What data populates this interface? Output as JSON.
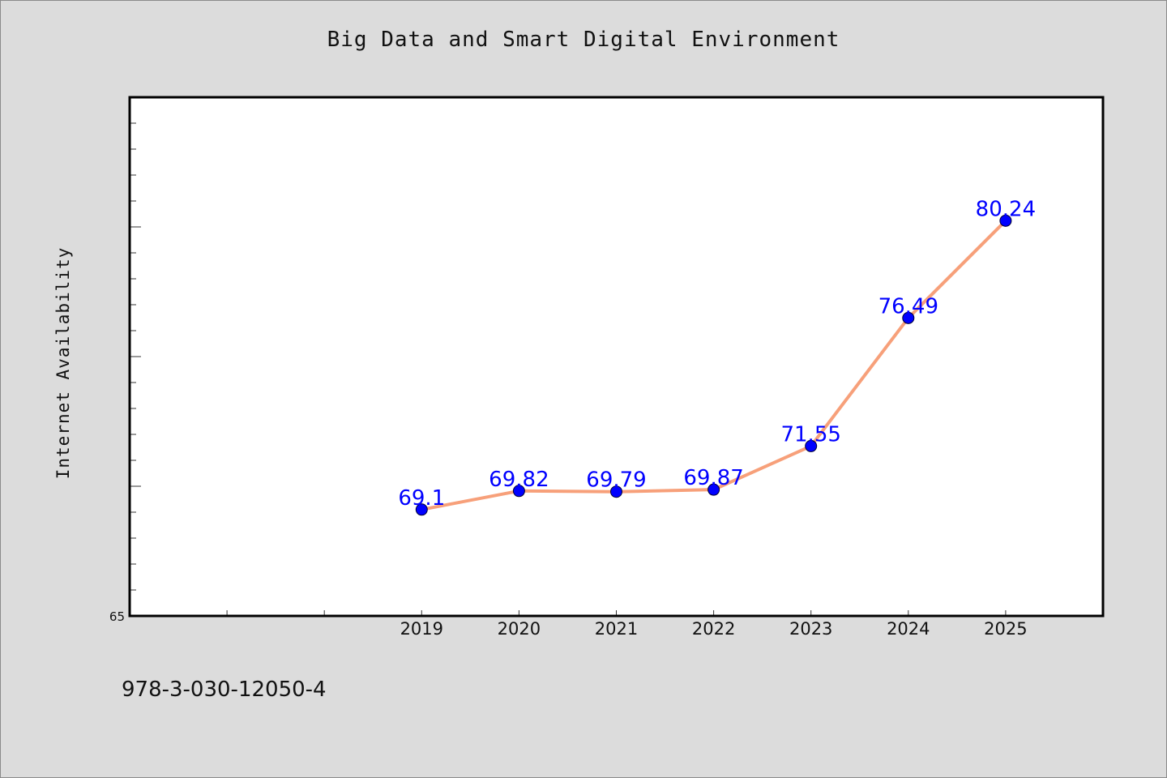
{
  "footer": {
    "code": "978-3-030-12050-4"
  },
  "chart_data": {
    "type": "line",
    "title": "Big Data and Smart Digital Environment",
    "xlabel": "",
    "ylabel": "Internet Availability",
    "x": [
      "2019",
      "2020",
      "2021",
      "2022",
      "2023",
      "2024",
      "2025"
    ],
    "series": [
      {
        "values": [
          69.1,
          69.82,
          69.79,
          69.87,
          71.55,
          76.49,
          80.24
        ]
      }
    ],
    "data_labels": [
      "69.1",
      "69.82",
      "69.79",
      "69.87",
      "71.55",
      "76.49",
      "80.24"
    ],
    "xlim": [
      2016,
      2026
    ],
    "ylim": [
      65,
      85
    ],
    "y_tick_labels_shown": [
      "65"
    ],
    "grid": false,
    "line_color": "#f7a07a",
    "marker_color": "#0000ff",
    "label_color": "#0000ff",
    "background_color": "#dcdcdc",
    "plot_background_color": "#ffffff"
  }
}
